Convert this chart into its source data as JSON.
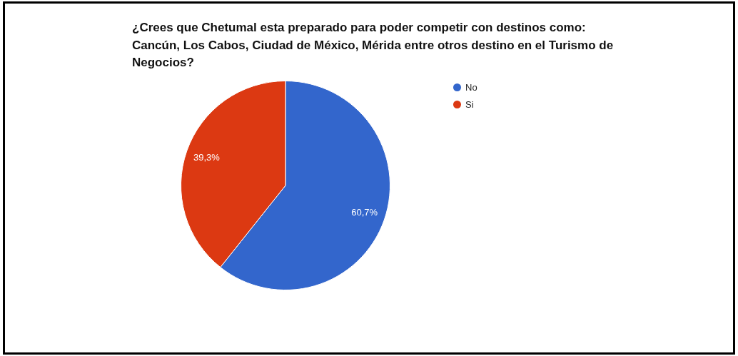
{
  "chart_data": {
    "type": "pie",
    "title": "¿Crees que Chetumal esta preparado para poder competir con destinos como: Cancún, Los Cabos, Ciudad de México, Mérida entre otros destino en el Turismo de Negocios?",
    "categories": [
      "No",
      "Si"
    ],
    "values": [
      60.7,
      39.3
    ],
    "colors": [
      "#3366cc",
      "#dc3912"
    ],
    "value_labels": [
      "60,7%",
      "39,3%"
    ],
    "legend": "top right"
  }
}
